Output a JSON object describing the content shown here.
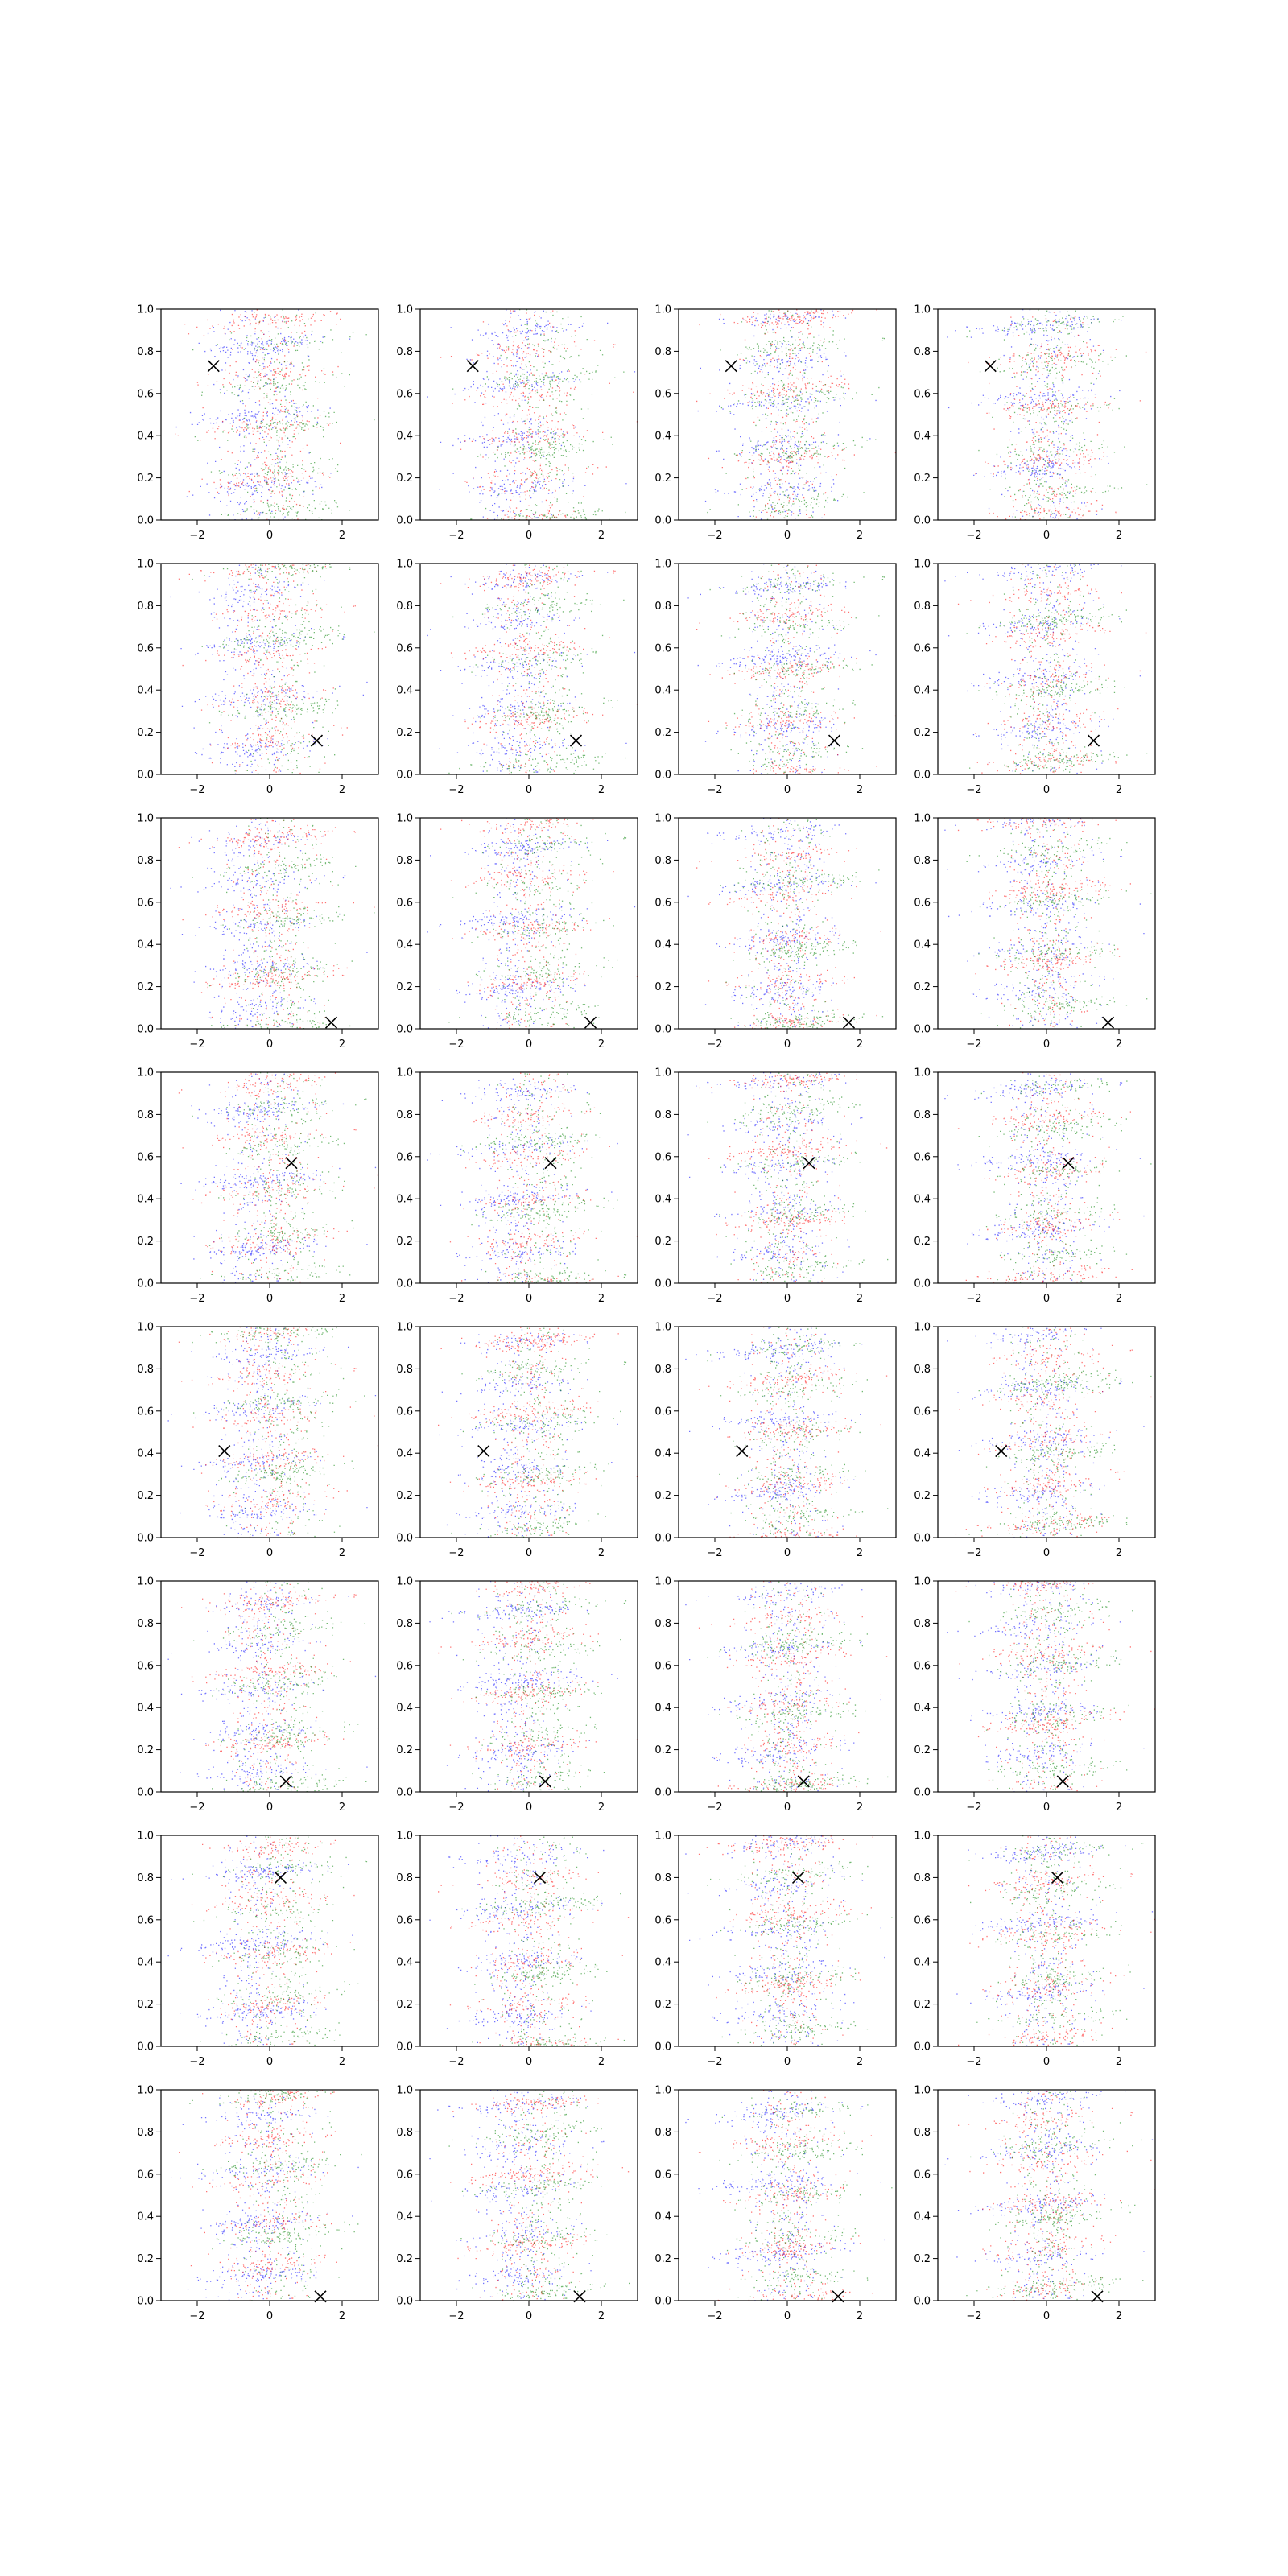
{
  "figure": {
    "layout": {
      "rows": 8,
      "cols": 4
    },
    "colors": {
      "series_a": "#0000ff",
      "series_b": "#ff0000",
      "series_c": "#008000",
      "marker": "#000000"
    }
  },
  "chart_data": {
    "type": "scatter",
    "xlim": [
      -3,
      3
    ],
    "ylim": [
      0,
      1
    ],
    "x_ticks": [
      -2,
      0,
      2
    ],
    "x_tick_labels": [
      "−2",
      "0",
      "2"
    ],
    "y_ticks": [
      0.0,
      0.2,
      0.4,
      0.6,
      0.8,
      1.0
    ],
    "y_tick_labels": [
      "0.0",
      "0.2",
      "0.4",
      "0.6",
      "0.8",
      "1.0"
    ],
    "grid": false,
    "series_colors": [
      "blue",
      "red",
      "green"
    ],
    "marker_symbol": "x",
    "marker_points": [
      [
        -1.55,
        0.73
      ],
      [
        1.3,
        0.16
      ],
      [
        1.7,
        0.03
      ],
      [
        0.6,
        0.57
      ],
      [
        -1.25,
        0.41
      ],
      [
        0.45,
        0.05
      ],
      [
        0.3,
        0.8
      ],
      [
        1.4,
        0.02
      ]
    ]
  }
}
